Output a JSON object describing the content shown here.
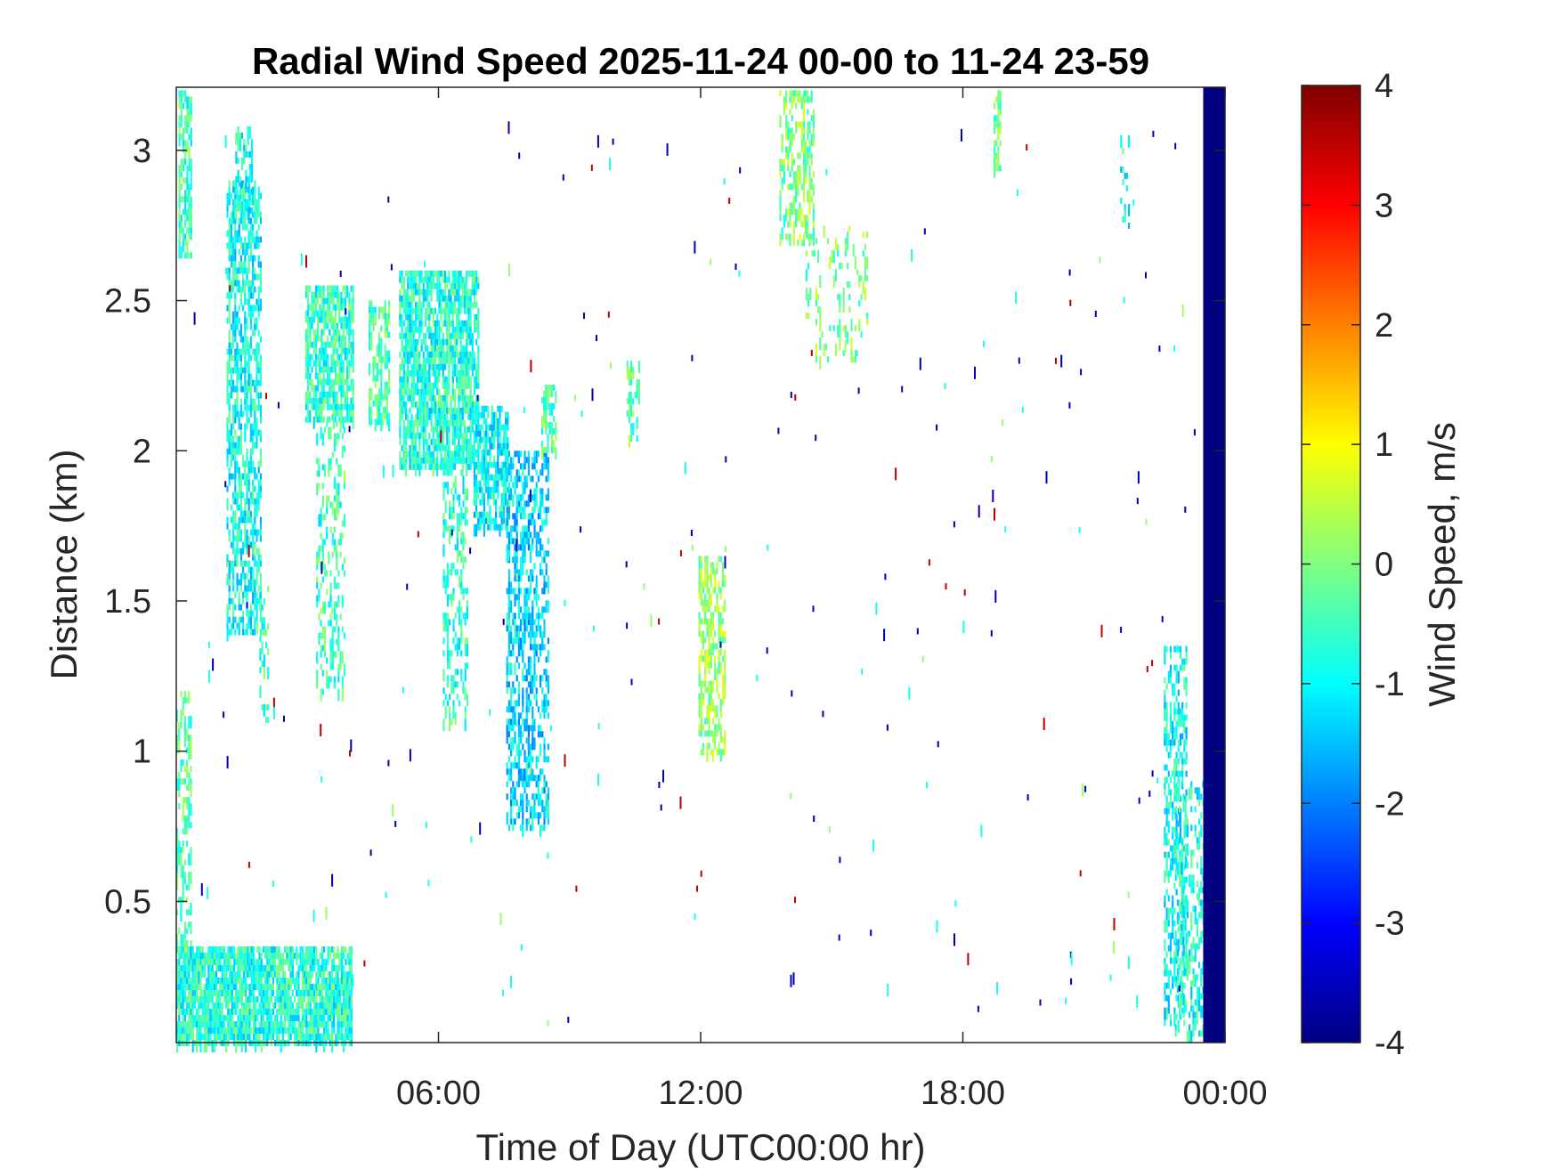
{
  "chart_data": {
    "type": "heatmap",
    "title": "Radial Wind Speed 2025-11-24 00-00 to 11-24 23-59",
    "xlabel": "Time of Day (UTC00:00 hr)",
    "ylabel": "Distance (km)",
    "xlim_hours": [
      0,
      24
    ],
    "ylim_km": [
      0.03,
      3.21
    ],
    "x_ticks": [
      {
        "hours": 6,
        "label": "06:00"
      },
      {
        "hours": 12,
        "label": "12:00"
      },
      {
        "hours": 18,
        "label": "18:00"
      },
      {
        "hours": 24,
        "label": "00:00"
      }
    ],
    "y_ticks": [
      {
        "km": 0.5,
        "label": "0.5"
      },
      {
        "km": 1,
        "label": "1"
      },
      {
        "km": 1.5,
        "label": "1.5"
      },
      {
        "km": 2,
        "label": "2"
      },
      {
        "km": 2.5,
        "label": "2.5"
      },
      {
        "km": 3,
        "label": "3"
      }
    ],
    "colorbar": {
      "label": "Wind Speed, m/s",
      "colormap": "jet",
      "range": [
        -4,
        4
      ],
      "ticks": [
        {
          "value": 4,
          "label": "4"
        },
        {
          "value": 3,
          "label": "3"
        },
        {
          "value": 2,
          "label": "2"
        },
        {
          "value": 1,
          "label": "1"
        },
        {
          "value": 0,
          "label": "0"
        },
        {
          "value": -1,
          "label": "-1"
        },
        {
          "value": -2,
          "label": "-2"
        },
        {
          "value": -3,
          "label": "-3"
        },
        {
          "value": -4,
          "label": "-4"
        }
      ]
    },
    "grid": false,
    "regions": [
      {
        "t0": 0.0,
        "t1": 4.0,
        "d0": 0.03,
        "d1": 0.35,
        "value": -0.7,
        "density": 0.85
      },
      {
        "t0": 0.0,
        "t1": 0.35,
        "d0": 0.35,
        "d1": 1.2,
        "value": -0.3,
        "density": 0.35
      },
      {
        "t0": 0.05,
        "t1": 0.35,
        "d0": 2.65,
        "d1": 3.2,
        "value": -0.5,
        "density": 0.6
      },
      {
        "t0": 1.15,
        "t1": 1.95,
        "d0": 1.4,
        "d1": 2.9,
        "value": -0.9,
        "density": 0.55
      },
      {
        "t0": 1.35,
        "t1": 1.75,
        "d0": 2.8,
        "d1": 3.08,
        "value": -0.8,
        "density": 0.5
      },
      {
        "t0": 1.9,
        "t1": 2.1,
        "d0": 1.1,
        "d1": 1.55,
        "value": -0.6,
        "density": 0.3
      },
      {
        "t0": 2.95,
        "t1": 4.05,
        "d0": 2.1,
        "d1": 2.55,
        "value": -0.6,
        "density": 0.7
      },
      {
        "t0": 3.2,
        "t1": 3.85,
        "d0": 1.2,
        "d1": 2.1,
        "value": -0.5,
        "density": 0.3
      },
      {
        "t0": 4.4,
        "t1": 4.85,
        "d0": 2.1,
        "d1": 2.5,
        "value": -0.4,
        "density": 0.5
      },
      {
        "t0": 5.1,
        "t1": 6.9,
        "d0": 1.95,
        "d1": 2.6,
        "value": -0.7,
        "density": 0.75
      },
      {
        "t0": 6.1,
        "t1": 6.65,
        "d0": 1.1,
        "d1": 2.0,
        "value": -0.6,
        "density": 0.35
      },
      {
        "t0": 6.8,
        "t1": 7.6,
        "d0": 1.75,
        "d1": 2.15,
        "value": -1.0,
        "density": 0.65
      },
      {
        "t0": 7.55,
        "t1": 8.5,
        "d0": 0.75,
        "d1": 2.0,
        "value": -1.3,
        "density": 0.45
      },
      {
        "t0": 8.35,
        "t1": 8.7,
        "d0": 2.0,
        "d1": 2.22,
        "value": -0.3,
        "density": 0.6
      },
      {
        "t0": 10.3,
        "t1": 10.6,
        "d0": 2.05,
        "d1": 2.3,
        "value": -0.2,
        "density": 0.4
      },
      {
        "t0": 11.95,
        "t1": 12.55,
        "d0": 1.0,
        "d1": 1.65,
        "value": 0.2,
        "density": 0.5
      },
      {
        "t0": 13.8,
        "t1": 14.6,
        "d0": 2.7,
        "d1": 3.2,
        "value": 0.0,
        "density": 0.45
      },
      {
        "t0": 14.4,
        "t1": 15.8,
        "d0": 2.3,
        "d1": 2.75,
        "value": -0.1,
        "density": 0.15
      },
      {
        "t0": 18.7,
        "t1": 18.85,
        "d0": 2.95,
        "d1": 3.2,
        "value": -0.1,
        "density": 0.6
      },
      {
        "t0": 21.6,
        "t1": 21.8,
        "d0": 2.75,
        "d1": 3.05,
        "value": -0.8,
        "density": 0.2
      },
      {
        "t0": 22.6,
        "t1": 23.1,
        "d0": 0.1,
        "d1": 1.35,
        "value": -0.9,
        "density": 0.45
      },
      {
        "t0": 22.85,
        "t1": 23.5,
        "d0": 0.05,
        "d1": 0.9,
        "value": -0.8,
        "density": 0.35
      },
      {
        "t0": 23.5,
        "t1": 24.0,
        "d0": 0.03,
        "d1": 3.21,
        "value": -4.0,
        "density": 1.0
      }
    ]
  }
}
